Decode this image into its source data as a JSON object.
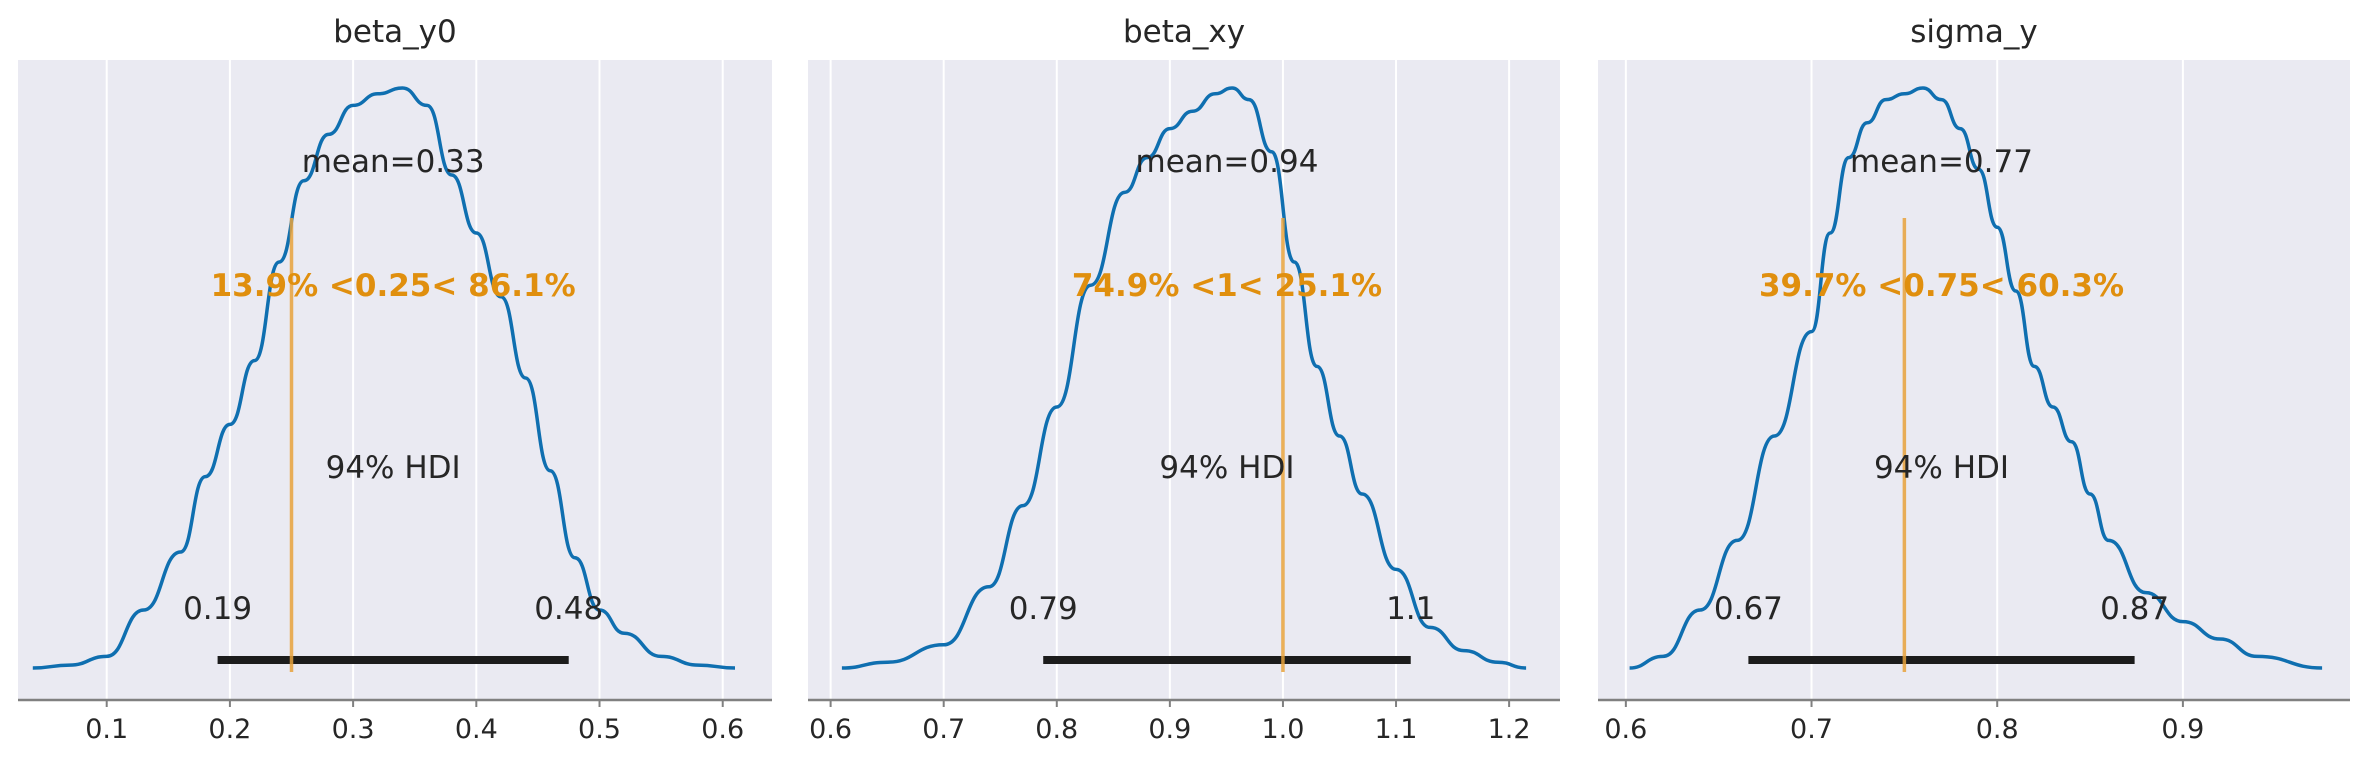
{
  "chart_data": [
    {
      "type": "area",
      "title": "beta_y0",
      "xlim": [
        0.028,
        0.64
      ],
      "xticks": [
        0.1,
        0.2,
        0.3,
        0.4,
        0.5,
        0.6
      ],
      "xtick_labels": [
        "0.1",
        "0.2",
        "0.3",
        "0.4",
        "0.5",
        "0.6"
      ],
      "density": {
        "x": [
          0.04,
          0.07,
          0.1,
          0.13,
          0.16,
          0.18,
          0.2,
          0.22,
          0.24,
          0.26,
          0.28,
          0.3,
          0.32,
          0.34,
          0.36,
          0.38,
          0.4,
          0.42,
          0.44,
          0.46,
          0.48,
          0.5,
          0.52,
          0.55,
          0.58,
          0.61
        ],
        "y": [
          0.0,
          0.005,
          0.02,
          0.1,
          0.2,
          0.33,
          0.42,
          0.53,
          0.7,
          0.84,
          0.92,
          0.97,
          0.99,
          1.0,
          0.97,
          0.85,
          0.75,
          0.64,
          0.5,
          0.34,
          0.19,
          0.1,
          0.06,
          0.02,
          0.005,
          0.0
        ]
      },
      "mean_label": "mean=0.33",
      "ref_value": 0.25,
      "ref_label": "13.9% <0.25< 86.1%",
      "hdi_label": "94% HDI",
      "hdi": [
        0.19,
        0.475
      ],
      "hdi_low_label": "0.19",
      "hdi_high_label": "0.48",
      "colors": {
        "line": "#0f6fb0",
        "ref": "#e8a33c",
        "hdi": "#1c1c1c"
      }
    },
    {
      "type": "area",
      "title": "beta_xy",
      "xlim": [
        0.58,
        1.245
      ],
      "xticks": [
        0.6,
        0.7,
        0.8,
        0.9,
        1.0,
        1.1,
        1.2
      ],
      "xtick_labels": [
        "0.6",
        "0.7",
        "0.8",
        "0.9",
        "1.0",
        "1.1",
        "1.2"
      ],
      "density": {
        "x": [
          0.61,
          0.65,
          0.7,
          0.74,
          0.77,
          0.8,
          0.83,
          0.86,
          0.88,
          0.9,
          0.92,
          0.94,
          0.955,
          0.97,
          0.99,
          1.01,
          1.03,
          1.05,
          1.07,
          1.1,
          1.13,
          1.16,
          1.19,
          1.215
        ],
        "y": [
          0.0,
          0.01,
          0.04,
          0.14,
          0.28,
          0.45,
          0.66,
          0.82,
          0.88,
          0.93,
          0.96,
          0.99,
          1.0,
          0.98,
          0.89,
          0.7,
          0.52,
          0.4,
          0.3,
          0.17,
          0.07,
          0.03,
          0.01,
          0.0
        ]
      },
      "mean_label": "mean=0.94",
      "ref_value": 1.0,
      "ref_label": "74.9% <1< 25.1%",
      "hdi_label": "94% HDI",
      "hdi": [
        0.788,
        1.113
      ],
      "hdi_low_label": "0.79",
      "hdi_high_label": "1.1",
      "colors": {
        "line": "#0f6fb0",
        "ref": "#e8a33c",
        "hdi": "#1c1c1c"
      }
    },
    {
      "type": "area",
      "title": "sigma_y",
      "xlim": [
        0.585,
        0.99
      ],
      "xticks": [
        0.6,
        0.7,
        0.8,
        0.9
      ],
      "xtick_labels": [
        "0.6",
        "0.7",
        "0.8",
        "0.9"
      ],
      "density": {
        "x": [
          0.602,
          0.62,
          0.64,
          0.66,
          0.68,
          0.7,
          0.71,
          0.72,
          0.73,
          0.74,
          0.75,
          0.76,
          0.77,
          0.78,
          0.79,
          0.8,
          0.81,
          0.82,
          0.83,
          0.84,
          0.85,
          0.86,
          0.88,
          0.9,
          0.92,
          0.94,
          0.975
        ],
        "y": [
          0.0,
          0.02,
          0.1,
          0.22,
          0.4,
          0.58,
          0.75,
          0.88,
          0.94,
          0.98,
          0.99,
          1.0,
          0.98,
          0.93,
          0.86,
          0.76,
          0.65,
          0.52,
          0.45,
          0.39,
          0.3,
          0.22,
          0.13,
          0.08,
          0.05,
          0.02,
          0.0
        ]
      },
      "mean_label": "mean=0.77",
      "ref_value": 0.75,
      "ref_label": "39.7% <0.75< 60.3%",
      "hdi_label": "94% HDI",
      "hdi": [
        0.666,
        0.874
      ],
      "hdi_low_label": "0.67",
      "hdi_high_label": "0.87",
      "colors": {
        "line": "#0f6fb0",
        "ref": "#e8a33c",
        "hdi": "#1c1c1c"
      }
    }
  ],
  "style": {
    "background": "#eaeaf2",
    "grid": "#ffffff",
    "axis": "#808080"
  }
}
